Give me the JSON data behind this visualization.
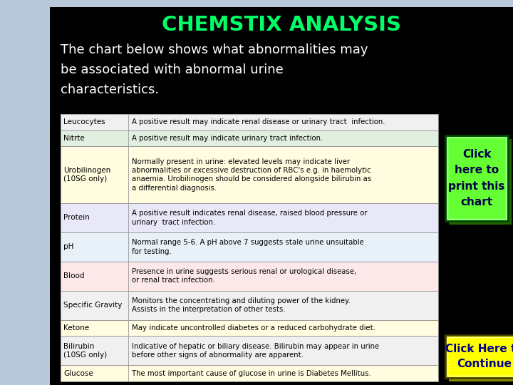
{
  "title": "CHEMSTIX ANALYSIS",
  "title_color": "#00ff66",
  "subtitle_lines": [
    "The chart below shows what abnormalities may",
    "be associated with abnormal urine",
    "characteristics."
  ],
  "subtitle_color": "#ffffff",
  "background_color": "#000000",
  "outer_bg": "#b8c8d8",
  "table_data": [
    [
      "Leucocytes",
      "A positive result may indicate renal disease or urinary tract  infection.",
      "#f0f0f0"
    ],
    [
      "Nitrte",
      "A positive result may indicate urinary tract infection.",
      "#e0efe0"
    ],
    [
      "Urobilinogen\n(10SG only)",
      "Normally present in urine: elevated levels may indicate liver\nabnormalities or excessive destruction of RBC's e.g. in haemolytic\nanaemia. Urobilinogen should be considered alongside bilirubin as\na differential diagnosis.",
      "#fffce0"
    ],
    [
      "Protein",
      "A positive result indicates renal disease, raised blood pressure or\nurinary  tract infection.",
      "#e8e8f8"
    ],
    [
      "pH",
      "Normal range 5-6. A pH above 7 suggests stale urine unsuitable\nfor testing.",
      "#e8f0f8"
    ],
    [
      "Blood",
      "Presence in urine suggests serious renal or urological disease,\nor renal tract infection.",
      "#fce8e8"
    ],
    [
      "Specific Gravity",
      "Monitors the concentrating and diluting power of the kidney.\nAssists in the interpretation of other tests.",
      "#f0f0f0"
    ],
    [
      "Ketone",
      "May indicate uncontrolled diabetes or a reduced carbohydrate diet.",
      "#fffce0"
    ],
    [
      "Bilirubin\n(10SG only)",
      "Indicative of hepatic or biliary disease. Bilirubin may appear in urine\nbefore other signs of abnormality are apparent.",
      "#f0f0f0"
    ],
    [
      "Glucose",
      "The most important cause of glucose in urine is Diabetes Mellitus.",
      "#fffce0"
    ]
  ],
  "click_btn": {
    "text": "Click\nhere to\nprint this\nchart",
    "bg": "#66ff33",
    "shadow_color": "#226600",
    "border_color": "#004400",
    "text_color": "#000044"
  },
  "continue_btn": {
    "text": "Click Here to\nContinue",
    "bg": "#ffff00",
    "shadow_color": "#888800",
    "border_color": "#444400",
    "text_color": "#000088"
  }
}
